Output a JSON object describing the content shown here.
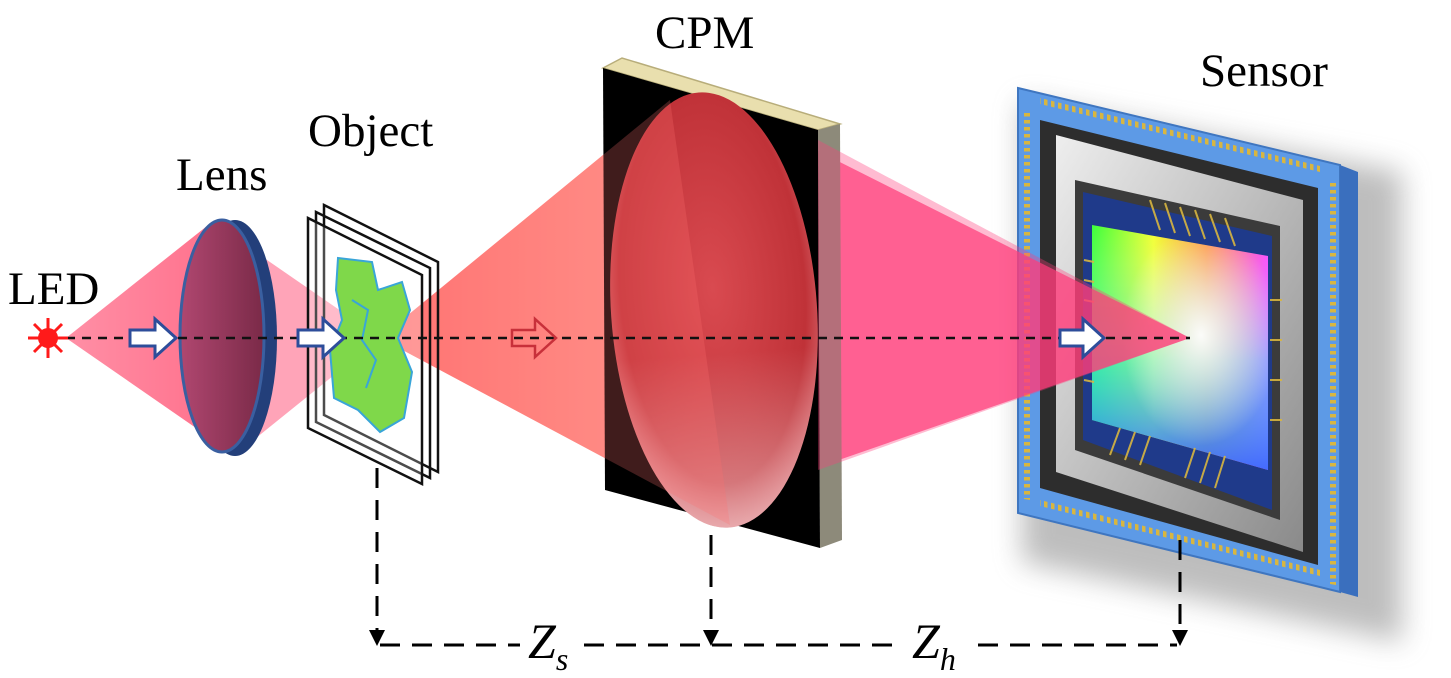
{
  "labels": {
    "led": "LED",
    "lens": "Lens",
    "object": "Object",
    "cpm": "CPM",
    "sensor": "Sensor"
  },
  "distances": {
    "zs_main": "Z",
    "zs_sub": "s",
    "zh_main": "Z",
    "zh_sub": "h"
  },
  "colors": {
    "beam": "#ff4d6d",
    "cpm_face": "#c8303a",
    "cpm_frame": "#000000",
    "cpm_edge": "#e9dfae",
    "lens": "#8e3252",
    "lens_rim": "#2b4f8e",
    "object_mask": "#7fd84a",
    "sensor_frame": "#4f8fe0",
    "arrow": "#ffffff",
    "led": "#ff1a1a"
  }
}
